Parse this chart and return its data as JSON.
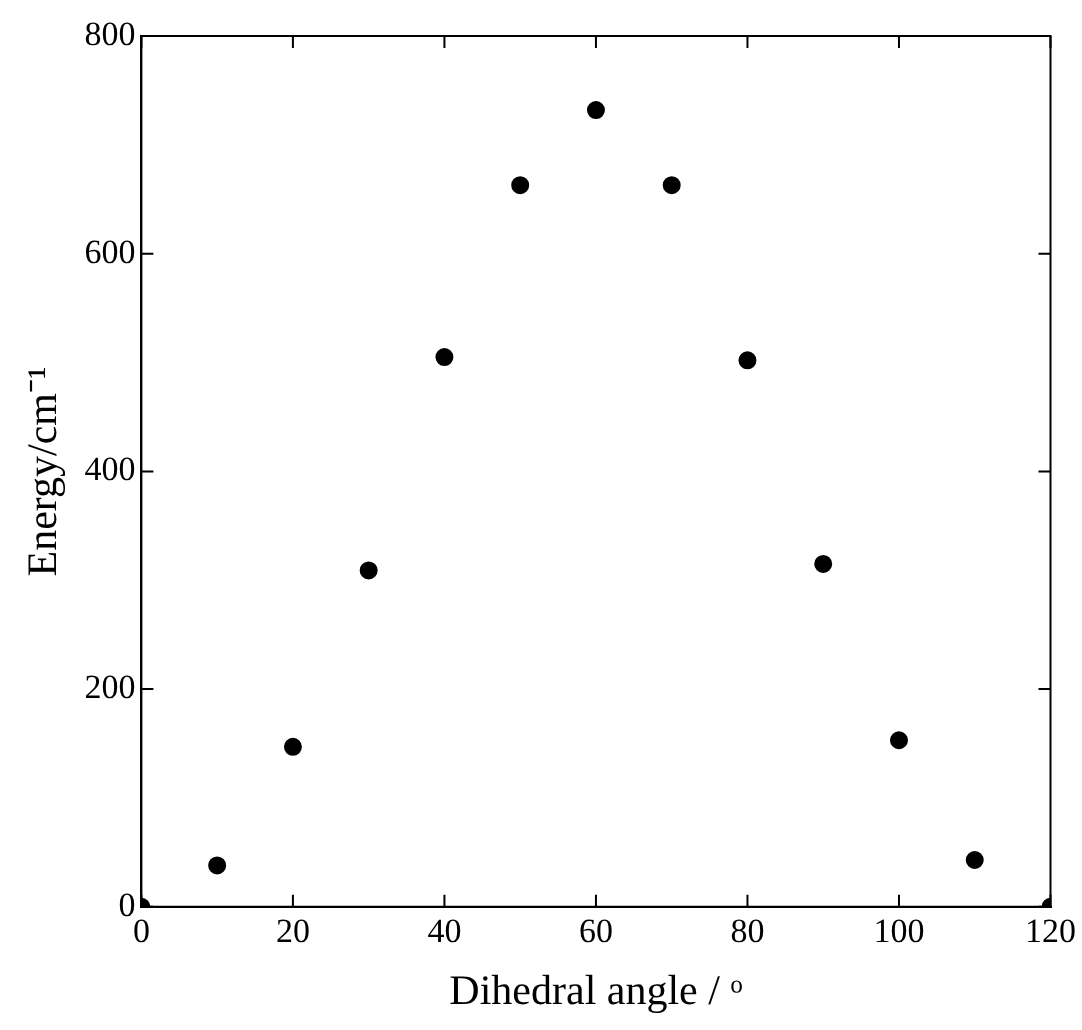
{
  "chart_data": {
    "type": "scatter",
    "xlabel": "Dihedral angle / ᵒ",
    "ylabel": "Energy/cm⁻¹",
    "x": [
      0,
      10,
      20,
      30,
      40,
      50,
      60,
      70,
      80,
      90,
      100,
      110,
      120
    ],
    "series": [
      {
        "color": "#000000",
        "values": [
          0,
          38,
          147,
          309,
          505,
          663,
          732,
          663,
          502,
          315,
          153,
          43,
          0
        ]
      }
    ],
    "xlim": [
      0,
      120
    ],
    "xticks": [
      0,
      20,
      40,
      60,
      80,
      100,
      120
    ],
    "ylim": [
      0,
      800
    ],
    "yticks": [
      0,
      200,
      400,
      600,
      800
    ],
    "grid": false,
    "legend": false,
    "marker": "circle"
  }
}
